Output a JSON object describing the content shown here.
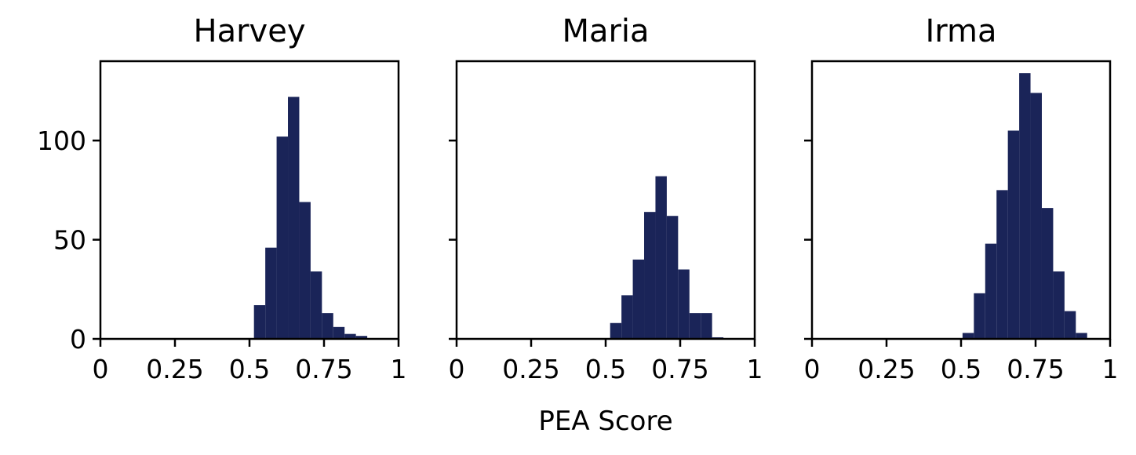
{
  "chart_data": {
    "type": "bar",
    "xlabel": "PEA Score",
    "shared_y": true,
    "ylim": [
      0,
      140
    ],
    "yticks": [
      0,
      50,
      100
    ],
    "ytick_labels": [
      "0",
      "50",
      "100"
    ],
    "xlim": [
      0,
      1
    ],
    "xticks": [
      0,
      0.25,
      0.5,
      0.75,
      1
    ],
    "xtick_labels": [
      "0",
      "0.25",
      "0.5",
      "0.75",
      "1"
    ],
    "bar_color": "#1a2458",
    "panels": [
      {
        "title": "Harvey",
        "bins": [
          {
            "x0": 0.515,
            "x1": 0.553,
            "count": 17
          },
          {
            "x0": 0.553,
            "x1": 0.591,
            "count": 46
          },
          {
            "x0": 0.591,
            "x1": 0.629,
            "count": 102
          },
          {
            "x0": 0.629,
            "x1": 0.667,
            "count": 122
          },
          {
            "x0": 0.667,
            "x1": 0.705,
            "count": 69
          },
          {
            "x0": 0.705,
            "x1": 0.743,
            "count": 34
          },
          {
            "x0": 0.743,
            "x1": 0.781,
            "count": 13
          },
          {
            "x0": 0.781,
            "x1": 0.819,
            "count": 6
          },
          {
            "x0": 0.819,
            "x1": 0.857,
            "count": 2.5
          },
          {
            "x0": 0.857,
            "x1": 0.895,
            "count": 1.5
          }
        ]
      },
      {
        "title": "Maria",
        "bins": [
          {
            "x0": 0.515,
            "x1": 0.553,
            "count": 8
          },
          {
            "x0": 0.553,
            "x1": 0.591,
            "count": 22
          },
          {
            "x0": 0.591,
            "x1": 0.629,
            "count": 40
          },
          {
            "x0": 0.629,
            "x1": 0.667,
            "count": 64
          },
          {
            "x0": 0.667,
            "x1": 0.705,
            "count": 82
          },
          {
            "x0": 0.705,
            "x1": 0.743,
            "count": 62
          },
          {
            "x0": 0.743,
            "x1": 0.781,
            "count": 35
          },
          {
            "x0": 0.781,
            "x1": 0.819,
            "count": 13
          },
          {
            "x0": 0.819,
            "x1": 0.857,
            "count": 13
          },
          {
            "x0": 0.857,
            "x1": 0.895,
            "count": 0.8
          }
        ]
      },
      {
        "title": "Irma",
        "bins": [
          {
            "x0": 0.505,
            "x1": 0.543,
            "count": 3
          },
          {
            "x0": 0.543,
            "x1": 0.581,
            "count": 23
          },
          {
            "x0": 0.581,
            "x1": 0.619,
            "count": 48
          },
          {
            "x0": 0.619,
            "x1": 0.657,
            "count": 75
          },
          {
            "x0": 0.657,
            "x1": 0.695,
            "count": 105
          },
          {
            "x0": 0.695,
            "x1": 0.733,
            "count": 134
          },
          {
            "x0": 0.733,
            "x1": 0.771,
            "count": 124
          },
          {
            "x0": 0.771,
            "x1": 0.809,
            "count": 66
          },
          {
            "x0": 0.809,
            "x1": 0.847,
            "count": 34
          },
          {
            "x0": 0.847,
            "x1": 0.885,
            "count": 14
          },
          {
            "x0": 0.885,
            "x1": 0.923,
            "count": 3
          }
        ]
      }
    ]
  }
}
